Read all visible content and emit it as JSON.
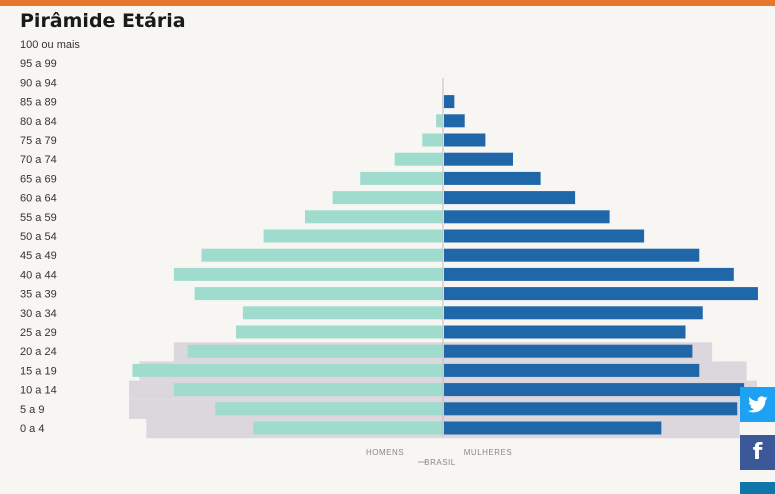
{
  "header": {
    "title": "Pirâmide Etária"
  },
  "social": {
    "twitter_icon": "twitter-bird-icon",
    "facebook_label": "f",
    "third_icon": "linkedin-icon"
  },
  "colors": {
    "men": "#9fdcce",
    "women": "#1f67a8",
    "brazil": "#dcd7dd",
    "accent": "#e8772e"
  },
  "chart_data": {
    "type": "bar",
    "orientation": "horizontal-population-pyramid",
    "title": "Pirâmide Etária",
    "categories": [
      "100 ou mais",
      "95 a 99",
      "90 a 94",
      "85 a 89",
      "80 a 84",
      "75 a 79",
      "70 a 74",
      "65 a 69",
      "60 a 64",
      "55 a 59",
      "50 a 54",
      "45 a 49",
      "40 a 44",
      "35 a 39",
      "30 a 34",
      "25 a 29",
      "20 a 24",
      "15 a 19",
      "10 a 14",
      "5 a 9",
      "0 a 4"
    ],
    "series": [
      {
        "name": "HOMENS",
        "side": "left",
        "values": [
          0,
          0,
          0,
          0.2,
          2,
          6,
          14,
          24,
          32,
          40,
          52,
          70,
          78,
          72,
          58,
          60,
          74,
          90,
          78,
          66,
          55
        ]
      },
      {
        "name": "MULHERES",
        "side": "right",
        "values": [
          0,
          0,
          0,
          3,
          6,
          12,
          20,
          28,
          38,
          48,
          58,
          74,
          84,
          91,
          75,
          70,
          72,
          74,
          87,
          85,
          63
        ]
      },
      {
        "name": "BRASIL",
        "type": "background",
        "values": [
          0,
          0,
          0,
          0,
          0,
          0,
          0,
          0,
          0,
          0,
          0,
          0,
          0,
          0,
          0,
          0,
          78,
          88,
          91,
          91,
          86
        ]
      }
    ],
    "legend_position": "bottom-center",
    "legend_labels": [
      "HOMENS",
      "MULHERES",
      "BRASIL"
    ]
  }
}
